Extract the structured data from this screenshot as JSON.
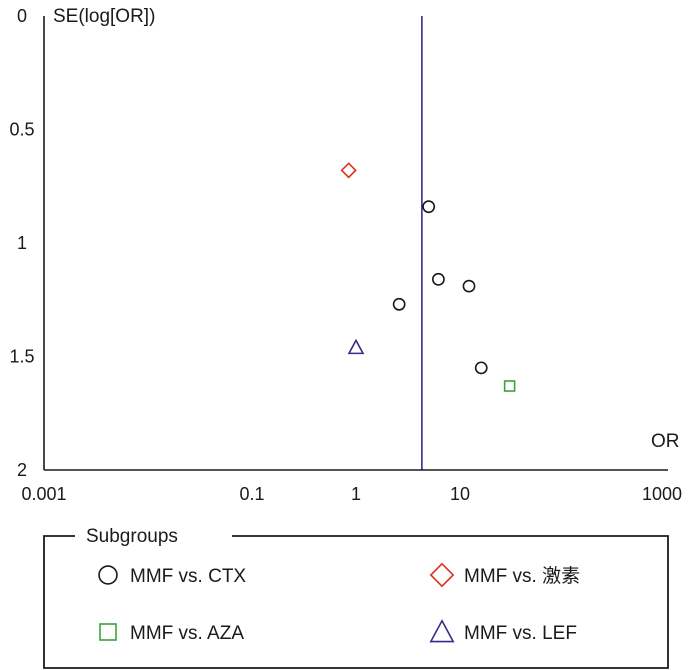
{
  "chart_data": {
    "type": "scatter",
    "title": "",
    "xlabel": "OR",
    "ylabel": "SE(log[OR])",
    "x_scale": "log",
    "y_inverted": true,
    "xlim": [
      0.001,
      1000
    ],
    "ylim": [
      0,
      2
    ],
    "x_ticks": [
      {
        "value": 0.001,
        "label": "0.001"
      },
      {
        "value": 0.1,
        "label": "0.1"
      },
      {
        "value": 1,
        "label": "1"
      },
      {
        "value": 10,
        "label": "10"
      },
      {
        "value": 1000,
        "label": "1000"
      }
    ],
    "y_ticks": [
      {
        "value": 0,
        "label": "0"
      },
      {
        "value": 0.5,
        "label": "0.5"
      },
      {
        "value": 1,
        "label": "1"
      },
      {
        "value": 1.5,
        "label": "1.5"
      },
      {
        "value": 2,
        "label": "2"
      }
    ],
    "reference_line": {
      "or": 4.3,
      "color": "#3a2a8c"
    },
    "grid": false,
    "legend": {
      "title": "Subgroups",
      "placement": "bottom"
    },
    "series": [
      {
        "name": "MMF vs. CTX",
        "marker": "circle",
        "color": "#1a1a1a",
        "points": [
          {
            "x": 5.0,
            "y": 0.84
          },
          {
            "x": 2.6,
            "y": 1.27
          },
          {
            "x": 6.2,
            "y": 1.16
          },
          {
            "x": 12.2,
            "y": 1.19
          },
          {
            "x": 16.0,
            "y": 1.55
          }
        ]
      },
      {
        "name": "MMF vs. 激素",
        "marker": "diamond",
        "color": "#e0301e",
        "points": [
          {
            "x": 0.85,
            "y": 0.68
          }
        ]
      },
      {
        "name": "MMF vs. AZA",
        "marker": "square",
        "color": "#3aa53a",
        "points": [
          {
            "x": 30.0,
            "y": 1.63
          }
        ]
      },
      {
        "name": "MMF vs. LEF",
        "marker": "triangle",
        "color": "#3a2a8c",
        "points": [
          {
            "x": 1.0,
            "y": 1.46
          }
        ]
      }
    ]
  }
}
